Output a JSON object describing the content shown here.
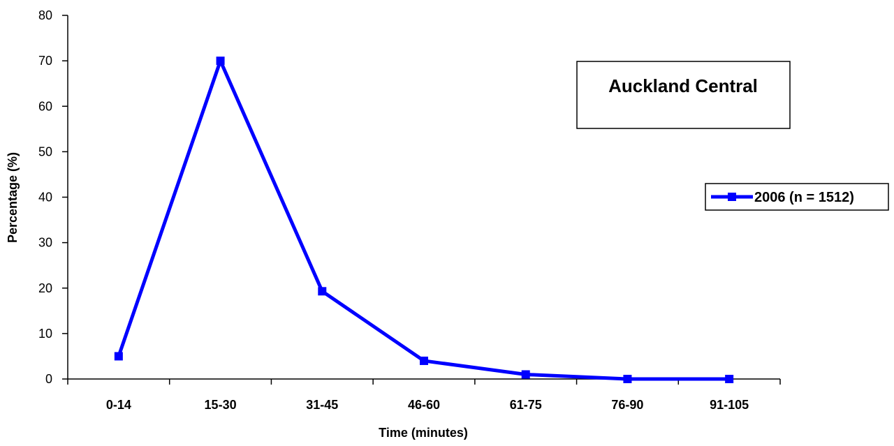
{
  "chart_data": {
    "type": "line",
    "categories": [
      "0-14",
      "15-30",
      "31-45",
      "46-60",
      "61-75",
      "76-90",
      "91-105"
    ],
    "series": [
      {
        "name": "2006 (n = 1512)",
        "values": [
          5,
          70,
          19.3,
          4,
          1,
          0,
          0
        ],
        "color": "#0000ff"
      }
    ],
    "xlabel": "Time (minutes)",
    "ylabel": "Percentage (%)",
    "ylim": [
      0,
      80
    ],
    "yticks": [
      "0",
      "10",
      "20",
      "30",
      "40",
      "50",
      "60",
      "70",
      "80"
    ],
    "annotation": "Auckland Central",
    "legend_position": "right",
    "grid": false
  }
}
